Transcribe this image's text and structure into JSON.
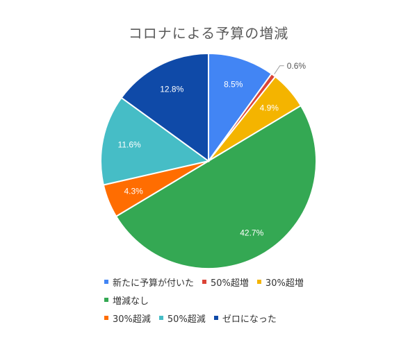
{
  "chart_data": {
    "type": "pie",
    "title": "コロナによる予算の増減",
    "categories": [
      "新たに予算が付いた",
      "50%超増",
      "30%超増",
      "増減なし",
      "30%超減",
      "50%超減",
      "ゼロになった"
    ],
    "values": [
      8.5,
      0.6,
      4.9,
      42.7,
      4.3,
      11.6,
      12.8
    ],
    "labels": [
      "8.5%",
      "0.6%",
      "4.9%",
      "42.7%",
      "4.3%",
      "11.6%",
      "12.8%"
    ],
    "colors": [
      "#4285f4",
      "#db4437",
      "#f4b400",
      "#34a853",
      "#ff6d01",
      "#46bdc6",
      "#0f4aa8"
    ],
    "label_colors": [
      "#ffffff",
      "#555555",
      "#ffffff",
      "#ffffff",
      "#ffffff",
      "#ffffff",
      "#ffffff"
    ],
    "legend_placement": "bottom",
    "legend_rows": [
      [
        0,
        1,
        2
      ],
      [
        3
      ],
      [
        4,
        5,
        6
      ]
    ]
  }
}
